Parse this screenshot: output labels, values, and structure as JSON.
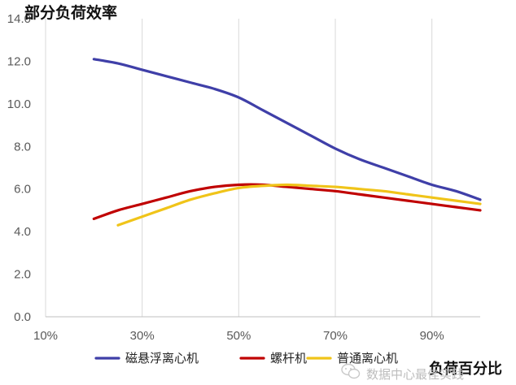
{
  "chart_data": {
    "type": "line",
    "title": "部分负荷效率",
    "xlabel": "负荷百分比",
    "ylabel": "",
    "xlim": [
      10,
      100
    ],
    "ylim": [
      0,
      14
    ],
    "x_ticks": [
      "10%",
      "30%",
      "50%",
      "70%",
      "90%"
    ],
    "y_ticks": [
      "0.0",
      "2.0",
      "4.0",
      "6.0",
      "8.0",
      "10.0",
      "12.0",
      "14.0"
    ],
    "grid": "vertical",
    "legend_position": "bottom",
    "series": [
      {
        "name": "磁悬浮离心机",
        "color": "#3f3fa8",
        "x": [
          20,
          25,
          30,
          35,
          40,
          45,
          50,
          55,
          60,
          65,
          70,
          75,
          80,
          85,
          90,
          95,
          100
        ],
        "y": [
          12.1,
          11.9,
          11.6,
          11.3,
          11.0,
          10.7,
          10.3,
          9.7,
          9.1,
          8.5,
          7.9,
          7.4,
          7.0,
          6.6,
          6.2,
          5.9,
          5.5
        ]
      },
      {
        "name": "螺杆机",
        "color": "#c00000",
        "x": [
          20,
          25,
          30,
          35,
          40,
          45,
          50,
          55,
          60,
          65,
          70,
          75,
          80,
          85,
          90,
          95,
          100
        ],
        "y": [
          4.6,
          5.0,
          5.3,
          5.6,
          5.9,
          6.1,
          6.2,
          6.2,
          6.1,
          6.0,
          5.9,
          5.75,
          5.6,
          5.45,
          5.3,
          5.15,
          5.0
        ]
      },
      {
        "name": "普通离心机",
        "color": "#f0c419",
        "x": [
          25,
          30,
          35,
          40,
          45,
          50,
          55,
          60,
          65,
          70,
          75,
          80,
          85,
          90,
          95,
          100
        ],
        "y": [
          4.3,
          4.7,
          5.1,
          5.5,
          5.8,
          6.05,
          6.15,
          6.2,
          6.15,
          6.1,
          6.0,
          5.9,
          5.75,
          5.6,
          5.45,
          5.3
        ]
      }
    ]
  },
  "watermark": {
    "text": "数据中心最佳实践"
  },
  "colors": {
    "grid": "#d9d9d9",
    "axis": "#bfbfbf"
  }
}
